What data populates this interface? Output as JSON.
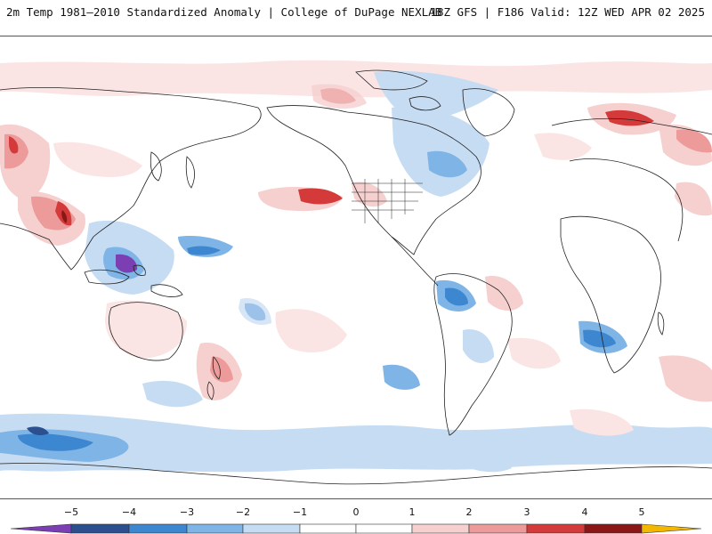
{
  "header": {
    "title": "2m Temp 1981–2010 Standardized Anomaly | College of DuPage NEXLAB",
    "run_info": "18Z GFS | F186 Valid: 12Z WED APR 02 2025"
  },
  "legend": {
    "ticks": [
      "−5",
      "−4",
      "−3",
      "−2",
      "−1",
      "0",
      "1",
      "2",
      "3",
      "4",
      "5"
    ],
    "colors": {
      "lt_minus5": "#7b3fb3",
      "m5_m4": "#2b4f8f",
      "m4_m3": "#3d86d0",
      "m3_m2": "#7fb4e6",
      "m2_m1": "#c6dcf3",
      "m1_0": "#ffffff",
      "p0_p1": "#ffffff",
      "p1_p2": "#f6cfcf",
      "p2_p3": "#ec9a9a",
      "p3_p4": "#d43a3a",
      "p4_p5": "#8b1616",
      "gt_p5": "#f2b800"
    }
  },
  "map": {
    "projection": "global cylindrical",
    "field": "2m temperature standardized anomaly"
  }
}
